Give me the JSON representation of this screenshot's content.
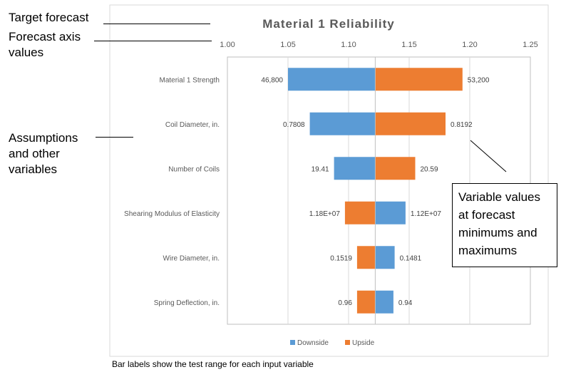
{
  "annotations": {
    "target_forecast": "Target forecast",
    "forecast_axis": "Forecast axis values",
    "assumptions": "Assumptions and other variables",
    "variable_values": "Variable values at forecast minimums and maximums",
    "footnote": "Bar labels show the test range for each input variable"
  },
  "colors": {
    "downside": "#5B9BD5",
    "upside": "#ED7D31",
    "axis_text": "#595959",
    "grid": "#D9D9D9",
    "title": "#595959"
  },
  "chart_data": {
    "type": "bar",
    "orientation": "horizontal",
    "subtype": "tornado",
    "title": "Material 1 Reliability",
    "xlim": [
      1.0,
      1.25
    ],
    "xticks": [
      "1.00",
      "1.05",
      "1.10",
      "1.15",
      "1.20",
      "1.25"
    ],
    "base_value": 1.122,
    "grid": true,
    "legend_position": "bottom",
    "categories": [
      "Material 1 Strength",
      "Coil Diameter, in.",
      "Number of Coils",
      "Shearing Modulus of Elasticity",
      "Wire Diameter, in.",
      "Spring Deflection, in."
    ],
    "series": [
      {
        "name": "Downside",
        "values": [
          1.05,
          1.068,
          1.088,
          1.147,
          1.138,
          1.137
        ],
        "labels": [
          "46,800",
          "0.7808",
          "19.41",
          "1.12E+07",
          "0.1481",
          "0.94"
        ]
      },
      {
        "name": "Upside",
        "values": [
          1.194,
          1.18,
          1.155,
          1.097,
          1.107,
          1.107
        ],
        "labels": [
          "53,200",
          "0.8192",
          "20.59",
          "1.18E+07",
          "0.1519",
          "0.96"
        ]
      }
    ]
  }
}
